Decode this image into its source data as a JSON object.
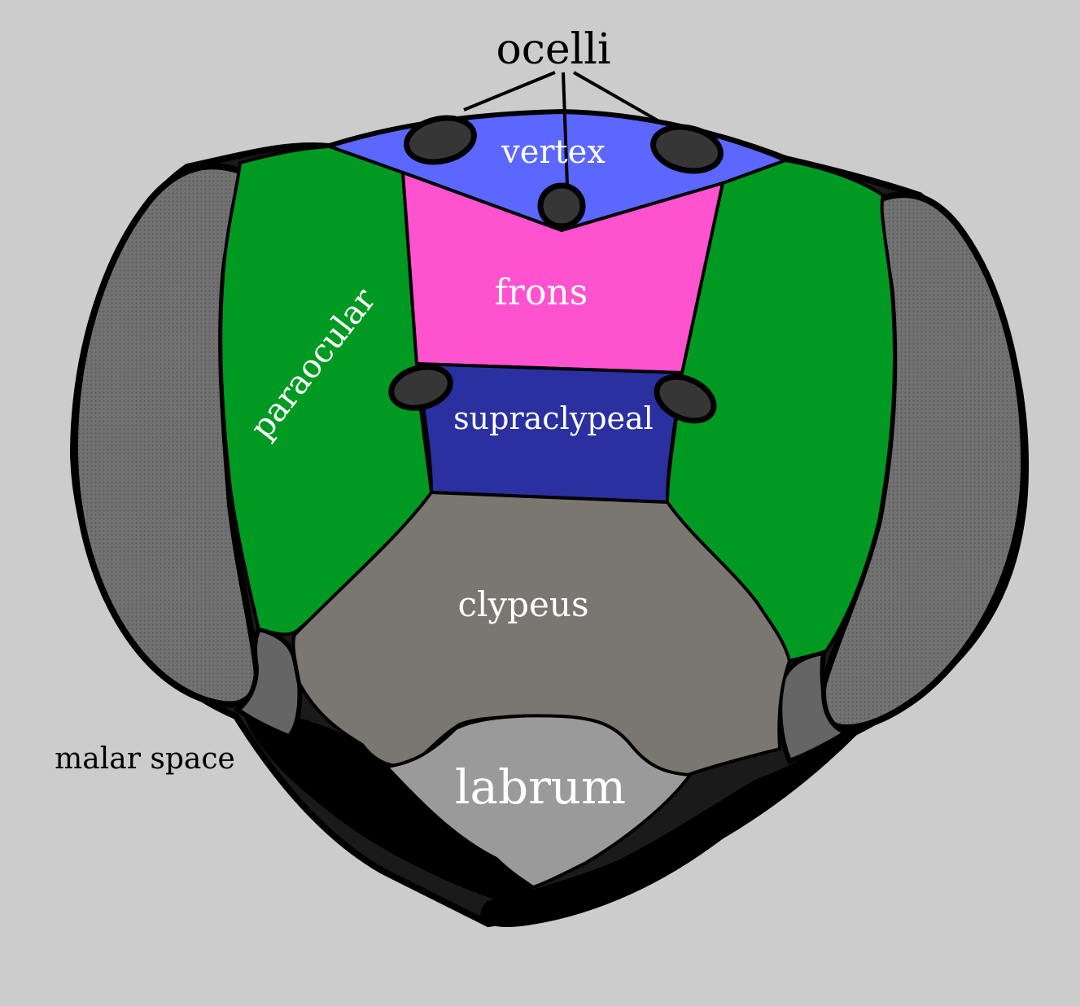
{
  "labels": {
    "ocelli": "ocelli",
    "vertex": "vertex",
    "frons": "frons",
    "paraocular": "paraocular",
    "supraclypeal": "supraclypeal",
    "clypeus": "clypeus",
    "malar_space": "malar space",
    "labrum": "labrum"
  },
  "colors": {
    "background": "#cccccc",
    "vertex": "#5b67ff",
    "frons": "#ff52cf",
    "paraocular": "#009a22",
    "supraclypeal": "#2b30a0",
    "clypeus": "#7a7670",
    "labrum": "#9a9a9a",
    "compound_eye": "#707070",
    "malar_space": "#656565",
    "mandible": "#000000",
    "ocellus": "#363636"
  }
}
